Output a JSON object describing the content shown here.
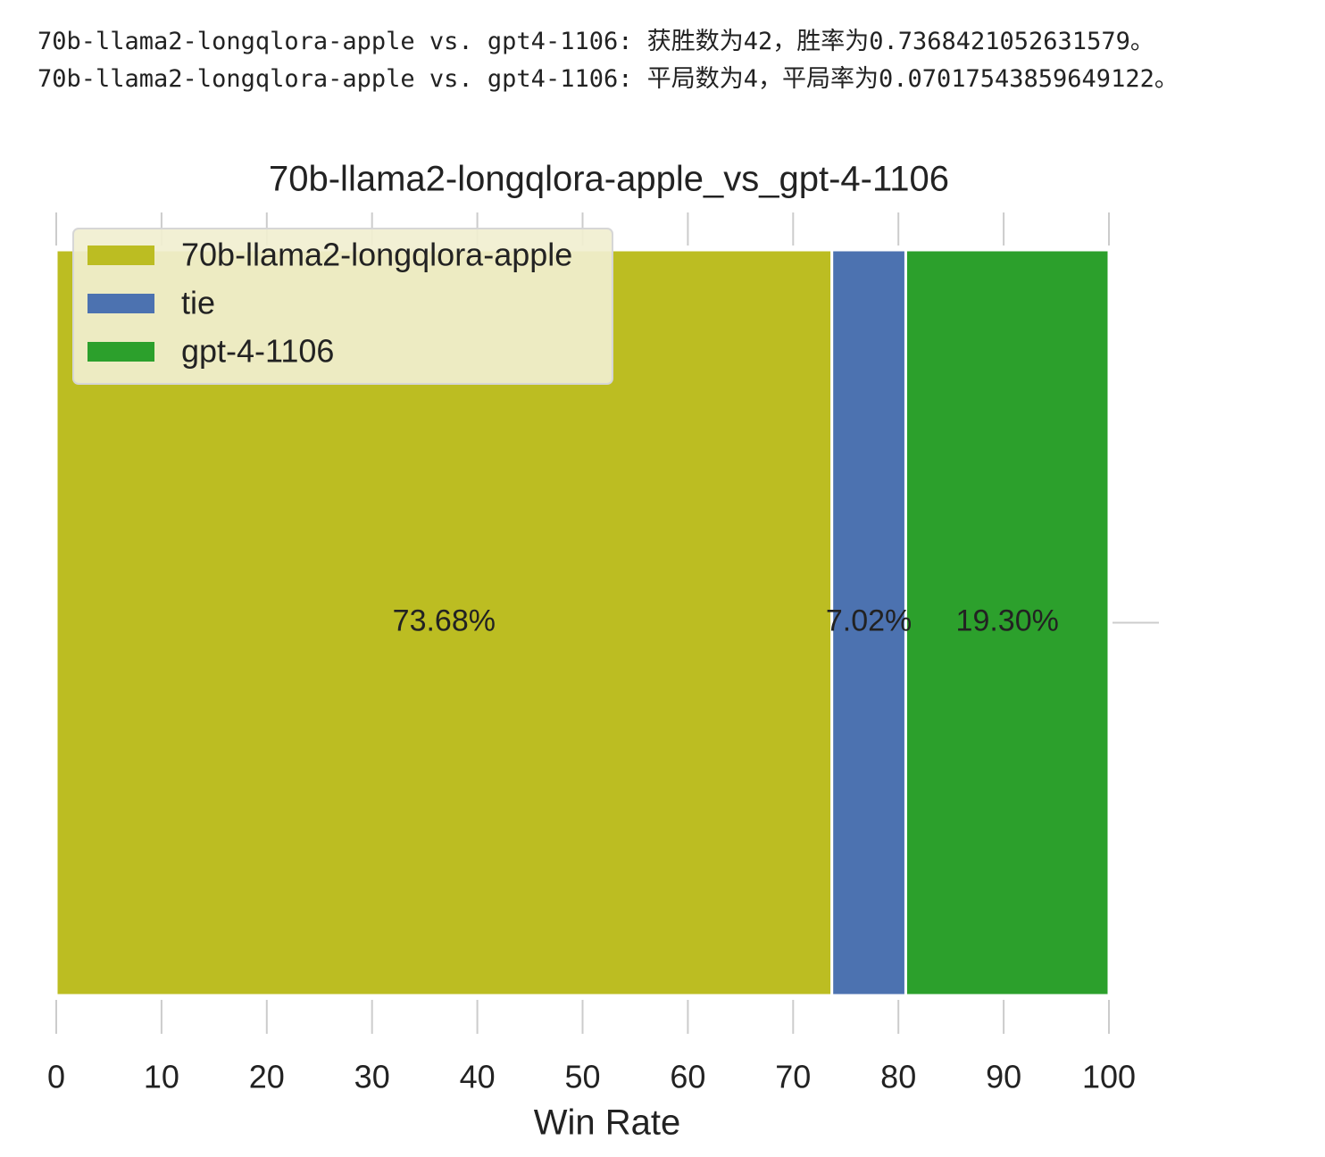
{
  "console_output": [
    "70b-llama2-longqlora-apple vs. gpt4-1106: 获胜数为42，胜率为0.7368421052631579。",
    "70b-llama2-longqlora-apple vs. gpt4-1106: 平局数为4，平局率为0.07017543859649122。"
  ],
  "chart_data": {
    "type": "bar",
    "orientation": "horizontal",
    "stacked": true,
    "title": "70b-llama2-longqlora-apple_vs_gpt-4-1106",
    "xlabel": "Win Rate",
    "categories": [
      null
    ],
    "series": [
      {
        "name": "70b-llama2-longqlora-apple",
        "color": "#bcbd22",
        "values": [
          73.68
        ],
        "value_labels": [
          "73.68%"
        ]
      },
      {
        "name": "tie",
        "color": "#4c72b0",
        "values": [
          7.02
        ],
        "value_labels": [
          "7.02%"
        ]
      },
      {
        "name": "gpt-4-1106",
        "color": "#2ca02c",
        "values": [
          19.3
        ],
        "value_labels": [
          "19.30%"
        ]
      }
    ],
    "xlim": [
      0,
      100
    ],
    "xticks": [
      0,
      10,
      20,
      30,
      40,
      50,
      60,
      70,
      80,
      90,
      100
    ],
    "legend": "upper left"
  }
}
